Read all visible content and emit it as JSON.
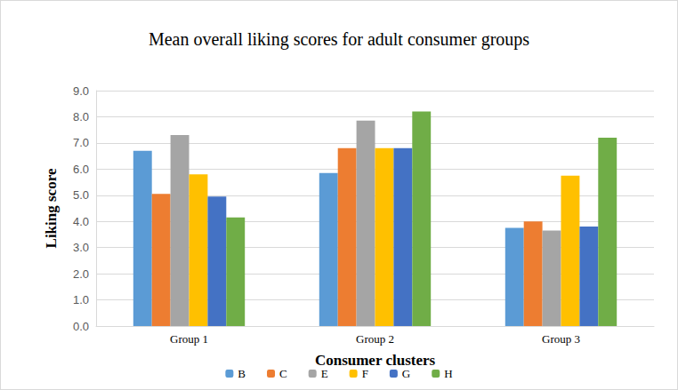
{
  "chart_data": {
    "type": "bar",
    "title": "Mean overall liking scores for adult consumer groups",
    "x_label": "Consumer clusters",
    "y_label": "Liking score",
    "categories": [
      "Group 1",
      "Group 2",
      "Group 3"
    ],
    "series": [
      {
        "name": "B",
        "color": "#5b9bd5",
        "values": [
          6.7,
          5.85,
          3.75
        ]
      },
      {
        "name": "C",
        "color": "#ed7d31",
        "values": [
          5.05,
          6.8,
          4.0
        ]
      },
      {
        "name": "E",
        "color": "#a5a5a5",
        "values": [
          7.3,
          7.85,
          3.65
        ]
      },
      {
        "name": "F",
        "color": "#ffc000",
        "values": [
          5.8,
          6.8,
          5.75
        ]
      },
      {
        "name": "G",
        "color": "#4472c4",
        "values": [
          4.95,
          6.8,
          3.8
        ]
      },
      {
        "name": "H",
        "color": "#70ad47",
        "values": [
          4.15,
          8.2,
          7.2
        ]
      }
    ],
    "ylim": [
      0,
      9
    ],
    "yticks": [
      {
        "value": 0,
        "label": "0.0"
      },
      {
        "value": 1,
        "label": "1.0"
      },
      {
        "value": 2,
        "label": "2.0"
      },
      {
        "value": 3,
        "label": "3.0"
      },
      {
        "value": 4,
        "label": "4.0"
      },
      {
        "value": 5,
        "label": "5.0"
      },
      {
        "value": 6,
        "label": "6.0"
      },
      {
        "value": 7,
        "label": "7.0"
      },
      {
        "value": 8,
        "label": "8.0"
      },
      {
        "value": 9,
        "label": "9.0"
      }
    ],
    "grid": true,
    "legend": "bottom"
  }
}
